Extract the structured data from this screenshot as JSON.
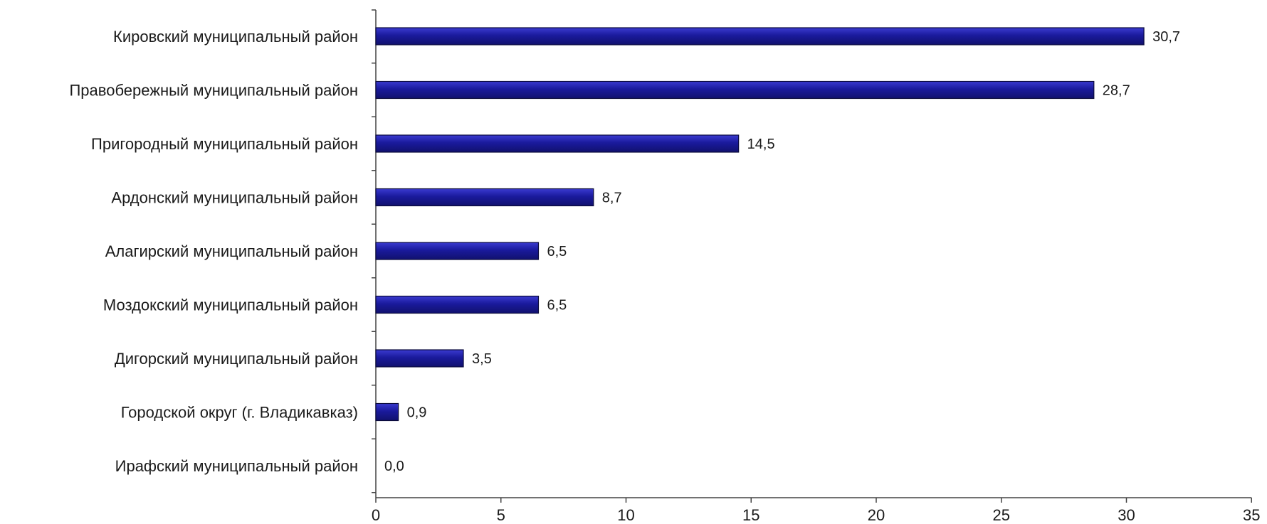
{
  "chart_data": {
    "type": "bar",
    "orientation": "horizontal",
    "categories": [
      "Кировский муниципальный район",
      "Правобережный муниципальный район",
      "Пригородный муниципальный район",
      "Ардонский муниципальный район",
      "Алагирский муниципальный район",
      "Моздокский муниципальный район",
      "Дигорский муниципальный район",
      "Городской округ (г. Владикавказ)",
      "Ирафский муниципальный район"
    ],
    "values": [
      30.7,
      28.7,
      14.5,
      8.7,
      6.5,
      6.5,
      3.5,
      0.9,
      0.0
    ],
    "value_labels": [
      "30,7",
      "28,7",
      "14,5",
      "8,7",
      "6,5",
      "6,5",
      "3,5",
      "0,9",
      "0,0"
    ],
    "xlim": [
      0,
      35
    ],
    "xticks": [
      0,
      5,
      10,
      15,
      20,
      25,
      30,
      35
    ],
    "xtick_labels": [
      "0",
      "5",
      "10",
      "15",
      "20",
      "25",
      "30",
      "35"
    ],
    "title": "",
    "xlabel": "",
    "ylabel": "",
    "grid": false,
    "legend": false
  },
  "colors": {
    "bar_fill": "#1a1a9c",
    "bar_fill_light": "#3a3ad0",
    "bar_stroke": "#0b0b3c",
    "axis": "#444444",
    "text": "#1a1a1a",
    "background": "#ffffff"
  }
}
